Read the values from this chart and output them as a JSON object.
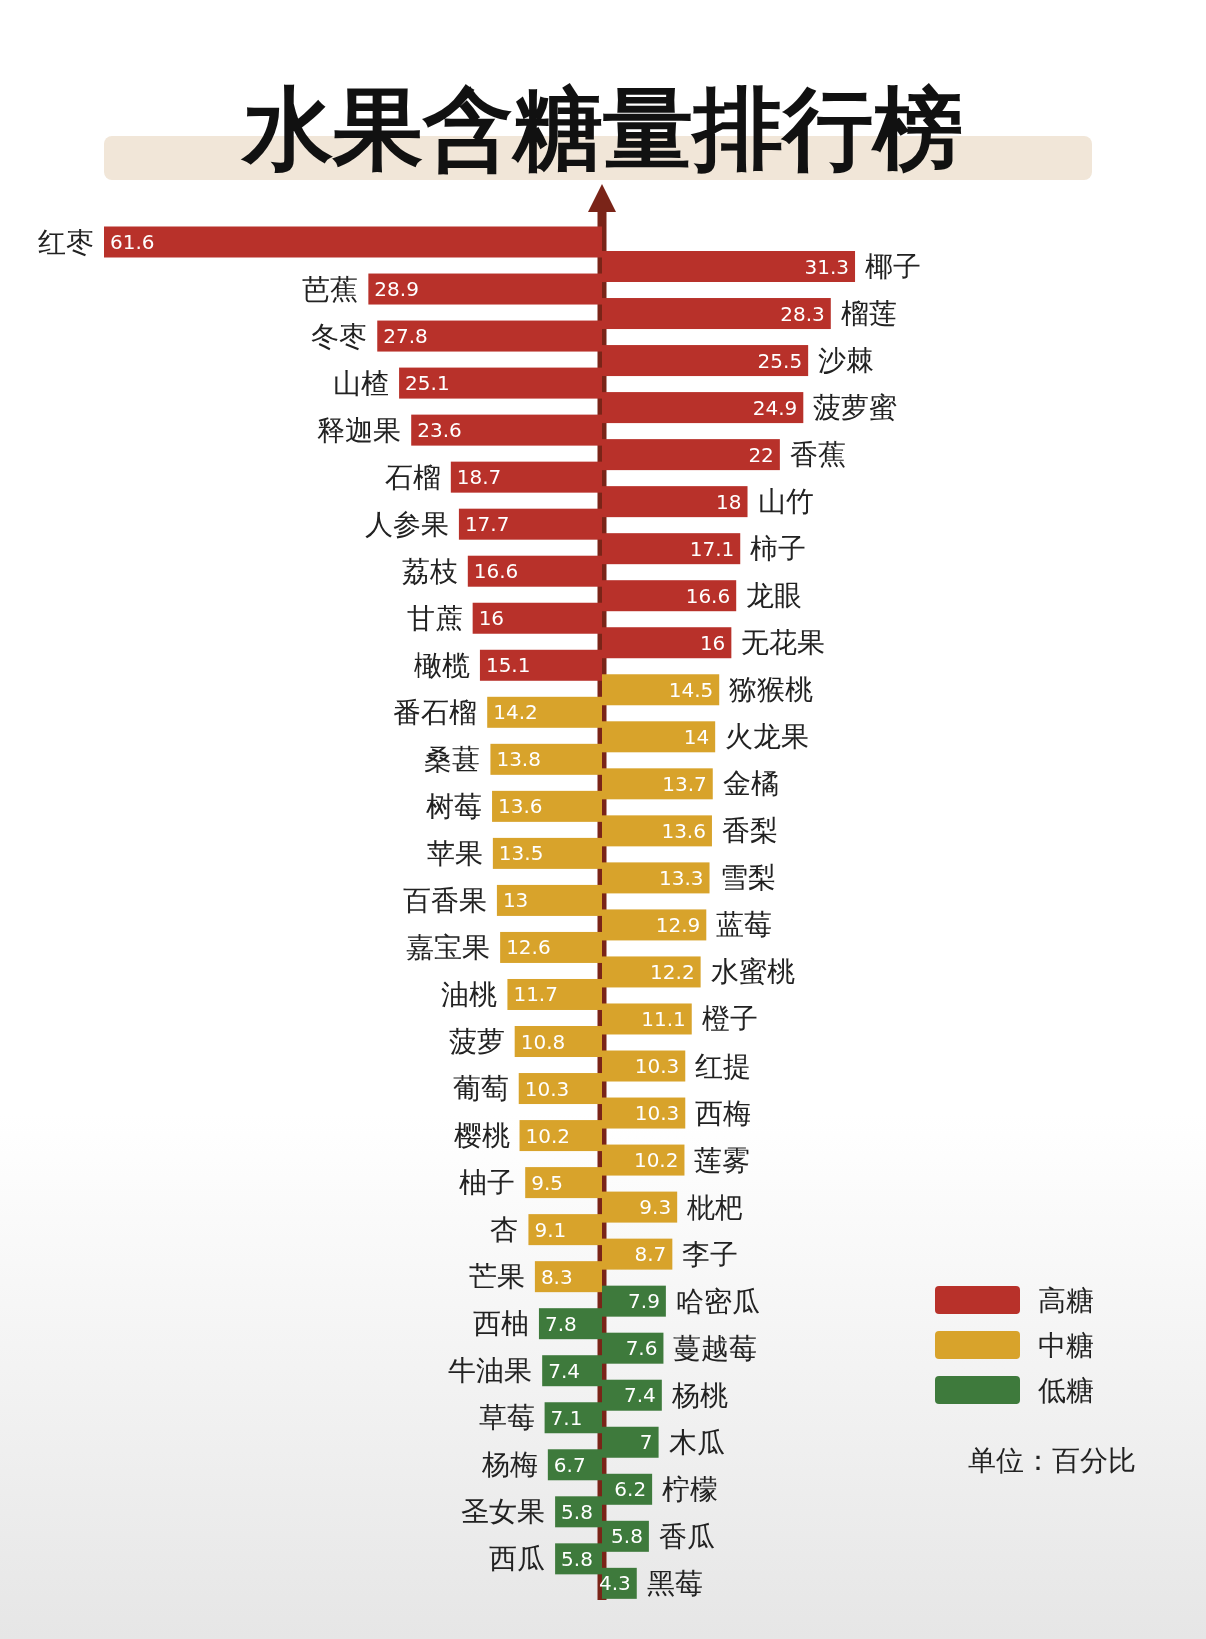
{
  "chart_data": [
    {
      "type": "bar",
      "orientation": "horizontal",
      "title": "水果含糖量排行榜",
      "data_labels": true,
      "categories": [
        "红枣",
        "芭蕉",
        "冬枣",
        "山楂",
        "释迦果",
        "石榴",
        "人参果",
        "荔枝",
        "甘蔗",
        "橄榄",
        "番石榴",
        "桑葚",
        "树莓",
        "苹果",
        "百香果",
        "嘉宝果",
        "油桃",
        "菠萝",
        "葡萄",
        "樱桃",
        "柚子",
        "杏",
        "芒果",
        "西柚",
        "牛油果",
        "草莓",
        "杨梅",
        "圣女果",
        "西瓜"
      ],
      "series": [
        {
          "color": "#b8312a",
          "values": [
            61.6,
            28.9,
            27.8,
            25.1,
            23.6,
            18.7,
            17.7,
            16.6,
            16,
            15.1,
            null,
            null,
            null,
            null,
            null,
            null,
            null,
            null,
            null,
            null,
            null,
            null,
            null,
            null,
            null,
            null,
            null,
            null,
            null
          ]
        },
        {
          "color": "#d8a32b",
          "values": [
            null,
            null,
            null,
            null,
            null,
            null,
            null,
            null,
            null,
            null,
            14.2,
            13.8,
            13.6,
            13.5,
            13,
            12.6,
            11.7,
            10.8,
            10.3,
            10.2,
            9.5,
            9.1,
            8.3,
            null,
            null,
            null,
            null,
            null,
            null
          ]
        },
        {
          "color": "#3e7a3c",
          "values": [
            null,
            null,
            null,
            null,
            null,
            null,
            null,
            null,
            null,
            null,
            null,
            null,
            null,
            null,
            null,
            null,
            null,
            null,
            null,
            null,
            null,
            null,
            null,
            7.8,
            7.4,
            7.1,
            6.7,
            5.8,
            5.8
          ]
        }
      ]
    },
    {
      "type": "bar",
      "orientation": "horizontal",
      "data_labels": true,
      "legend": "bottom right",
      "annotations": [
        "单位：百分比"
      ],
      "categories": [
        "椰子",
        "榴莲",
        "沙棘",
        "菠萝蜜",
        "香蕉",
        "山竹",
        "柿子",
        "龙眼",
        "无花果",
        "猕猴桃",
        "火龙果",
        "金橘",
        "香梨",
        "雪梨",
        "蓝莓",
        "水蜜桃",
        "橙子",
        "红提",
        "西梅",
        "莲雾",
        "枇杷",
        "李子",
        "哈密瓜",
        "蔓越莓",
        "杨桃",
        "木瓜",
        "柠檬",
        "香瓜",
        "黑莓"
      ],
      "series": [
        {
          "name": "高糖",
          "color": "#b8312a",
          "values": [
            31.3,
            28.3,
            25.5,
            24.9,
            22,
            18,
            17.1,
            16.6,
            16,
            null,
            null,
            null,
            null,
            null,
            null,
            null,
            null,
            null,
            null,
            null,
            null,
            null,
            null,
            null,
            null,
            null,
            null,
            null,
            null
          ]
        },
        {
          "name": "中糖",
          "color": "#d8a32b",
          "values": [
            null,
            null,
            null,
            null,
            null,
            null,
            null,
            null,
            null,
            14.5,
            14,
            13.7,
            13.6,
            13.3,
            12.9,
            12.2,
            11.1,
            10.3,
            10.3,
            10.2,
            9.3,
            8.7,
            null,
            null,
            null,
            null,
            null,
            null,
            null
          ]
        },
        {
          "name": "低糖",
          "color": "#3e7a3c",
          "values": [
            null,
            null,
            null,
            null,
            null,
            null,
            null,
            null,
            null,
            null,
            null,
            null,
            null,
            null,
            null,
            null,
            null,
            null,
            null,
            null,
            null,
            null,
            7.9,
            7.6,
            7.4,
            7,
            6.2,
            5.8,
            4.3
          ]
        }
      ]
    }
  ]
}
